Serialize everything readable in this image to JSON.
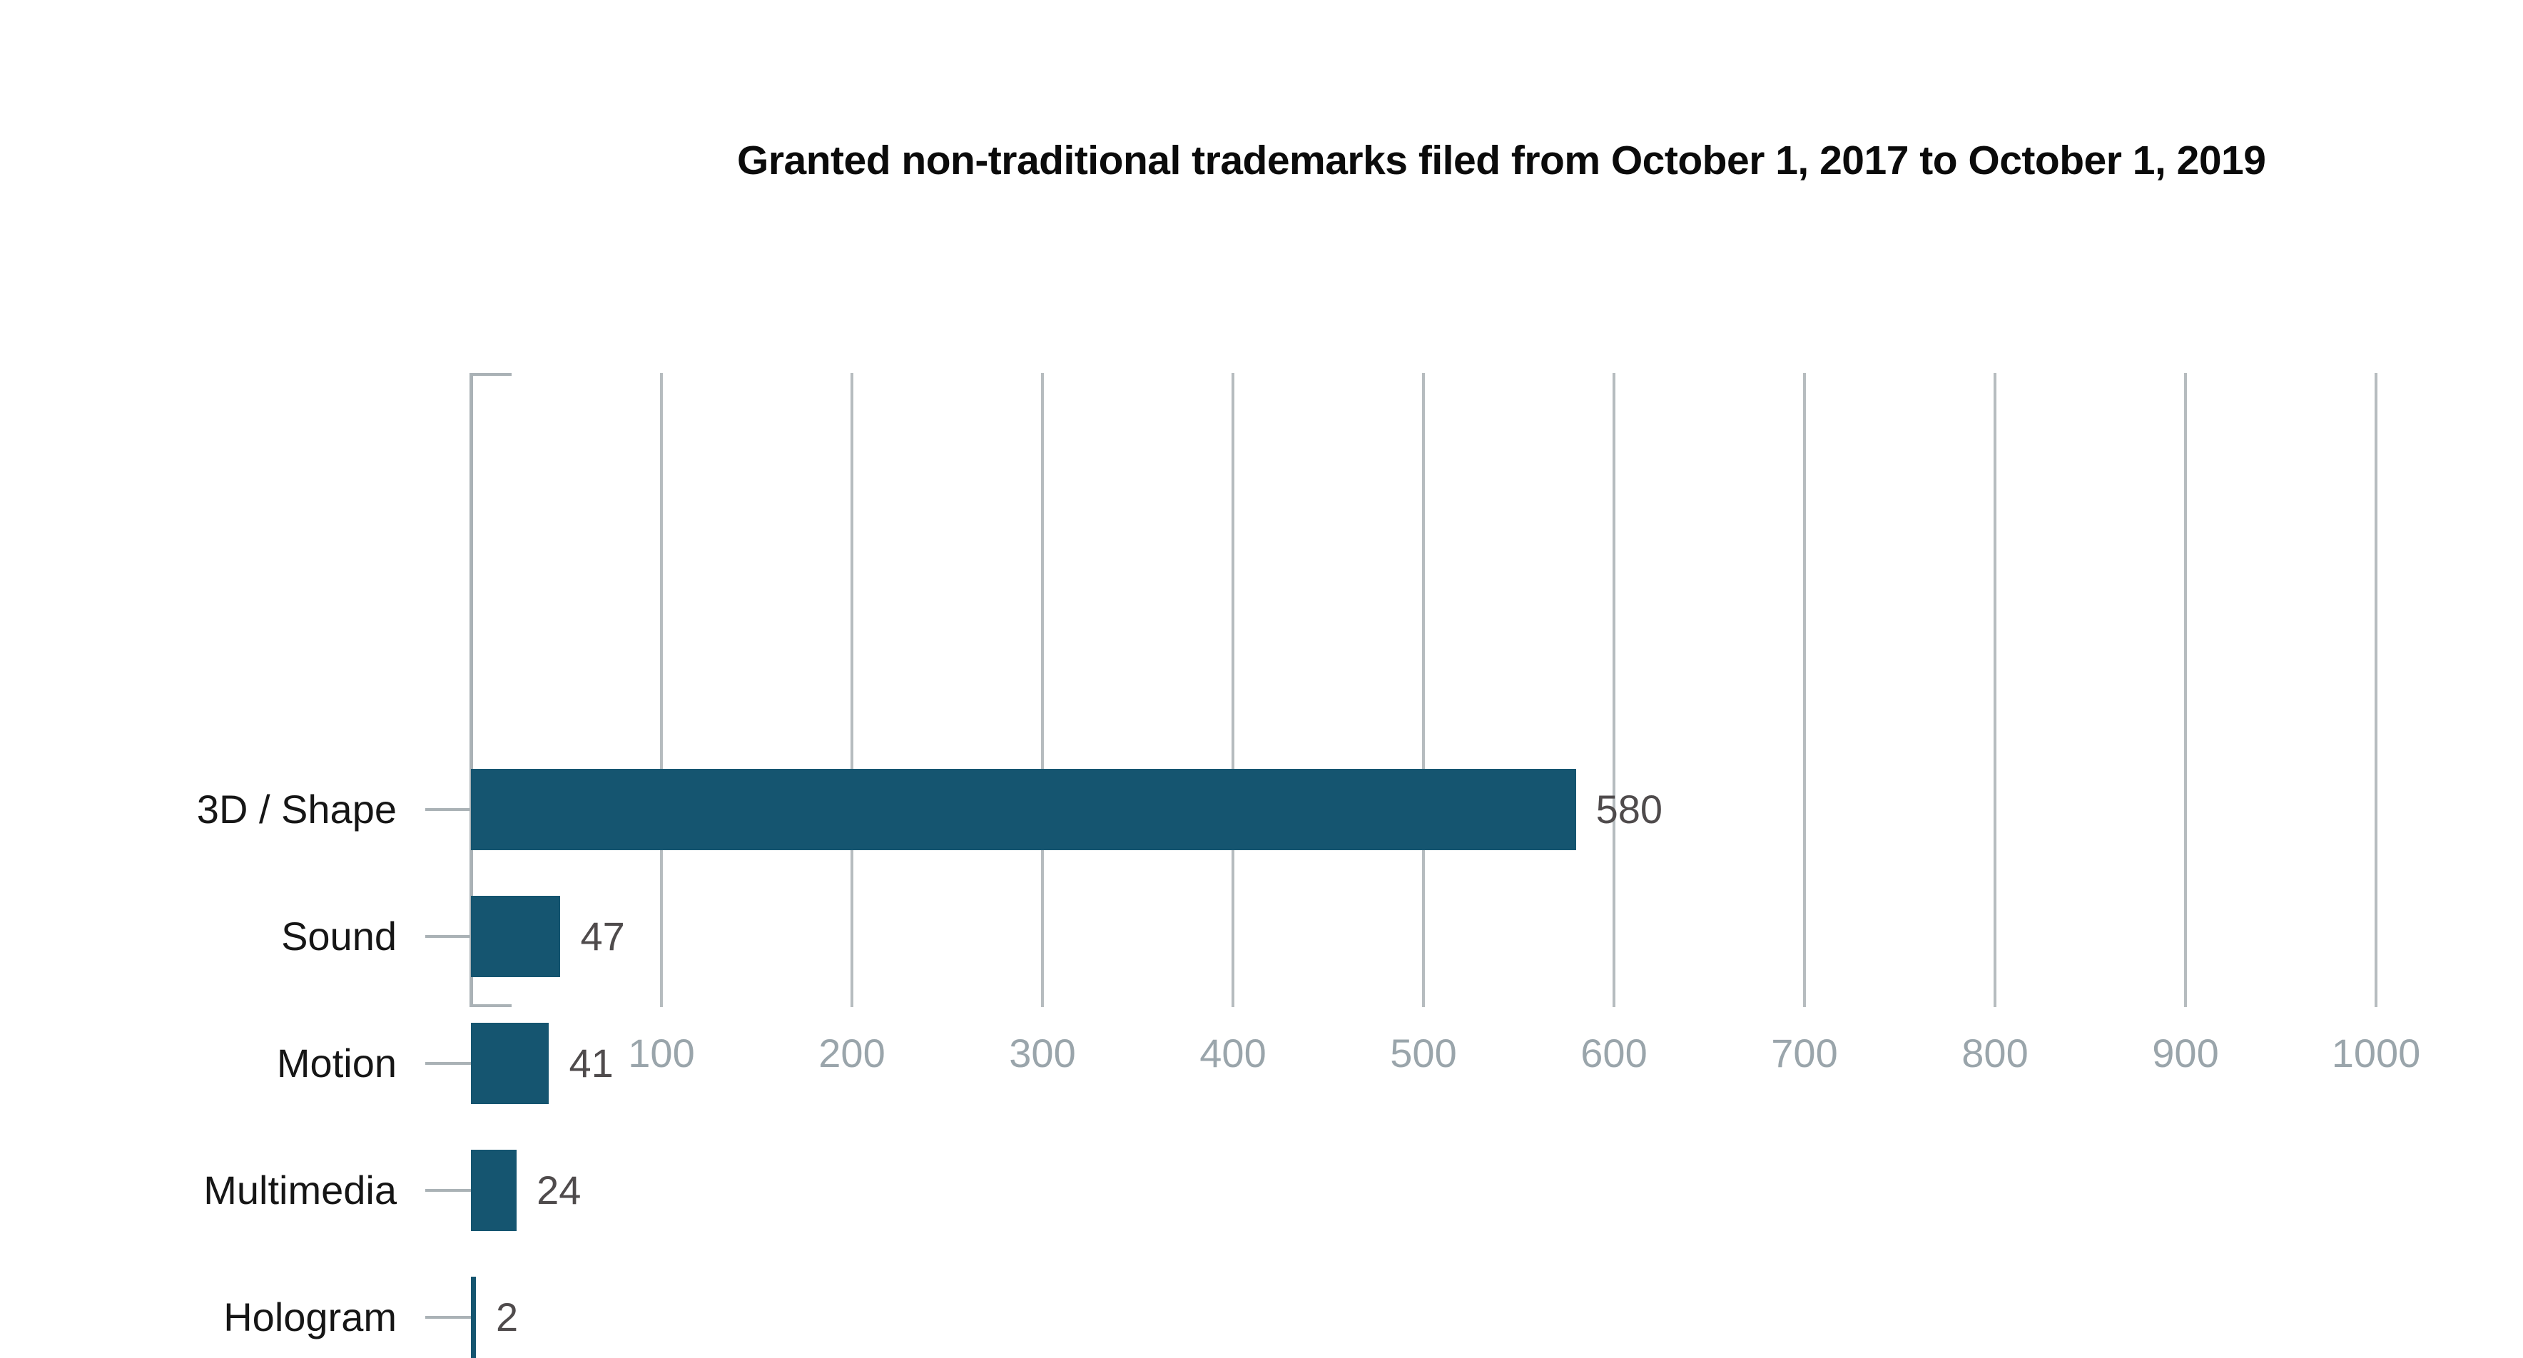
{
  "title": "Granted non-traditional trademarks filed from October 1, 2017 to October 1, 2019",
  "chart_data": {
    "type": "bar",
    "orientation": "horizontal",
    "title": "Granted non-traditional trademarks filed from October 1, 2017 to October 1, 2019",
    "categories": [
      "3D / Shape",
      "Sound",
      "Motion",
      "Multimedia",
      "Hologram"
    ],
    "values": [
      580,
      47,
      41,
      24,
      2
    ],
    "value_labels": [
      "580",
      "47",
      "41",
      "24",
      "2"
    ],
    "xlabel": "",
    "ylabel": "",
    "xlim": [
      0,
      1000
    ],
    "x_ticks": [
      "100",
      "200",
      "300",
      "400",
      "500",
      "600",
      "700",
      "800",
      "900",
      "1000"
    ],
    "grid": "vertical-gridlines-on",
    "legend": "none",
    "colors": {
      "bar": "#155570",
      "grid": "#b6bcbf",
      "axis": "#aab2b6",
      "value_label": "#4f4b4c",
      "category_label": "#161616",
      "tick_label": "#9aa5ab",
      "title": "#0b0b0b",
      "background": "#ffffff"
    }
  }
}
